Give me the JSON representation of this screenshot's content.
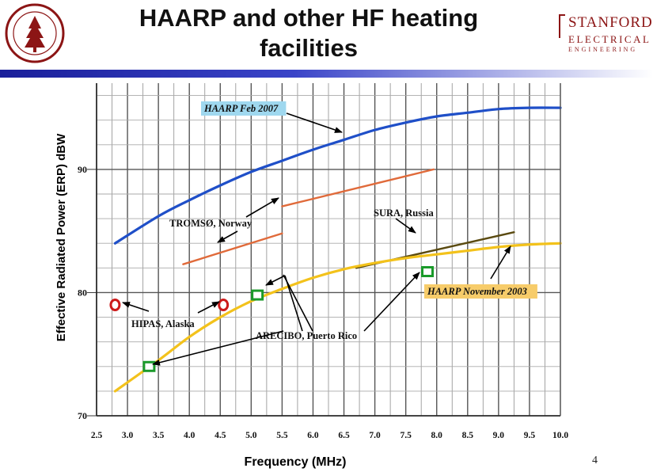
{
  "slide": {
    "title_line1": "HAARP and other HF heating",
    "title_line2": "facilities",
    "logo": {
      "main": "STANFORD",
      "sub1": "ELECTRICAL",
      "sub2": "ENGINEERING"
    },
    "seal_text": "LELAND STANFORD JUNIOR UNIVERSITY",
    "page_number": "4"
  },
  "chart_data": {
    "type": "line",
    "title": "",
    "xlabel": "Frequency (MHz)",
    "ylabel": "Effective Radiated Power (ERP) dBW",
    "xlim": [
      2.5,
      10.0
    ],
    "ylim": [
      70,
      97
    ],
    "x_ticks": [
      "2.5",
      "3.0",
      "3.5",
      "4.0",
      "4.5",
      "5.0",
      "5.5",
      "6.0",
      "6.5",
      "7.0",
      "7.5",
      "8.0",
      "8.5",
      "9.0",
      "9.5",
      "10.0"
    ],
    "y_ticks": [
      "70",
      "80",
      "90"
    ],
    "grid": true,
    "series": [
      {
        "name": "HAARP Feb 2007",
        "color": "#1f4fc8",
        "kind": "line",
        "points": [
          [
            2.8,
            84.0
          ],
          [
            3.5,
            86.2
          ],
          [
            4.0,
            87.5
          ],
          [
            4.5,
            88.7
          ],
          [
            5.0,
            89.8
          ],
          [
            5.5,
            90.7
          ],
          [
            6.0,
            91.6
          ],
          [
            6.5,
            92.4
          ],
          [
            7.0,
            93.2
          ],
          [
            7.5,
            93.8
          ],
          [
            8.0,
            94.3
          ],
          [
            8.5,
            94.6
          ],
          [
            9.0,
            94.9
          ],
          [
            9.5,
            95.0
          ],
          [
            10.0,
            95.0
          ]
        ]
      },
      {
        "name": "TROMSØ, Norway",
        "color": "#e06a3a",
        "kind": "line",
        "points": [
          [
            3.9,
            82.3
          ],
          [
            5.5,
            84.8
          ]
        ]
      },
      {
        "name": "TROMSØ, Norway",
        "color": "#e06a3a",
        "kind": "line",
        "points": [
          [
            5.5,
            87.0
          ],
          [
            7.95,
            90.0
          ]
        ]
      },
      {
        "name": "SURA, Russia",
        "color": "#5a4a10",
        "kind": "line",
        "points": [
          [
            6.7,
            82.0
          ],
          [
            9.25,
            84.9
          ]
        ]
      },
      {
        "name": "HAARP November 2003",
        "color": "#f3c21b",
        "kind": "line",
        "points": [
          [
            2.8,
            72.0
          ],
          [
            3.5,
            74.5
          ],
          [
            4.0,
            76.4
          ],
          [
            4.5,
            78.0
          ],
          [
            5.0,
            79.3
          ],
          [
            5.5,
            80.3
          ],
          [
            6.0,
            81.2
          ],
          [
            6.5,
            81.9
          ],
          [
            7.0,
            82.4
          ],
          [
            7.5,
            82.8
          ],
          [
            8.0,
            83.1
          ],
          [
            8.5,
            83.4
          ],
          [
            9.0,
            83.7
          ],
          [
            9.5,
            83.9
          ],
          [
            10.0,
            84.0
          ]
        ]
      },
      {
        "name": "HIPAS, Alaska",
        "color": "#cc1a1a",
        "kind": "marker-circle",
        "points": [
          [
            2.8,
            79.0
          ],
          [
            4.55,
            79.0
          ]
        ]
      },
      {
        "name": "ARECIBO, Puerto Rico",
        "color": "#1a9a2a",
        "kind": "marker-square",
        "points": [
          [
            3.35,
            74.0
          ],
          [
            5.1,
            79.8
          ],
          [
            7.85,
            81.7
          ]
        ]
      }
    ],
    "annotations": [
      {
        "text": "HAARP Feb 2007",
        "style": "boxed-blue"
      },
      {
        "text": "TROMSØ, Norway",
        "style": "plain"
      },
      {
        "text": "SURA, Russia",
        "style": "plain"
      },
      {
        "text": "HAARP November 2003",
        "style": "boxed-orange"
      },
      {
        "text": "HIPAS, Alaska",
        "style": "plain"
      },
      {
        "text": "ARECIBO, Puerto Rico",
        "style": "plain"
      }
    ]
  }
}
